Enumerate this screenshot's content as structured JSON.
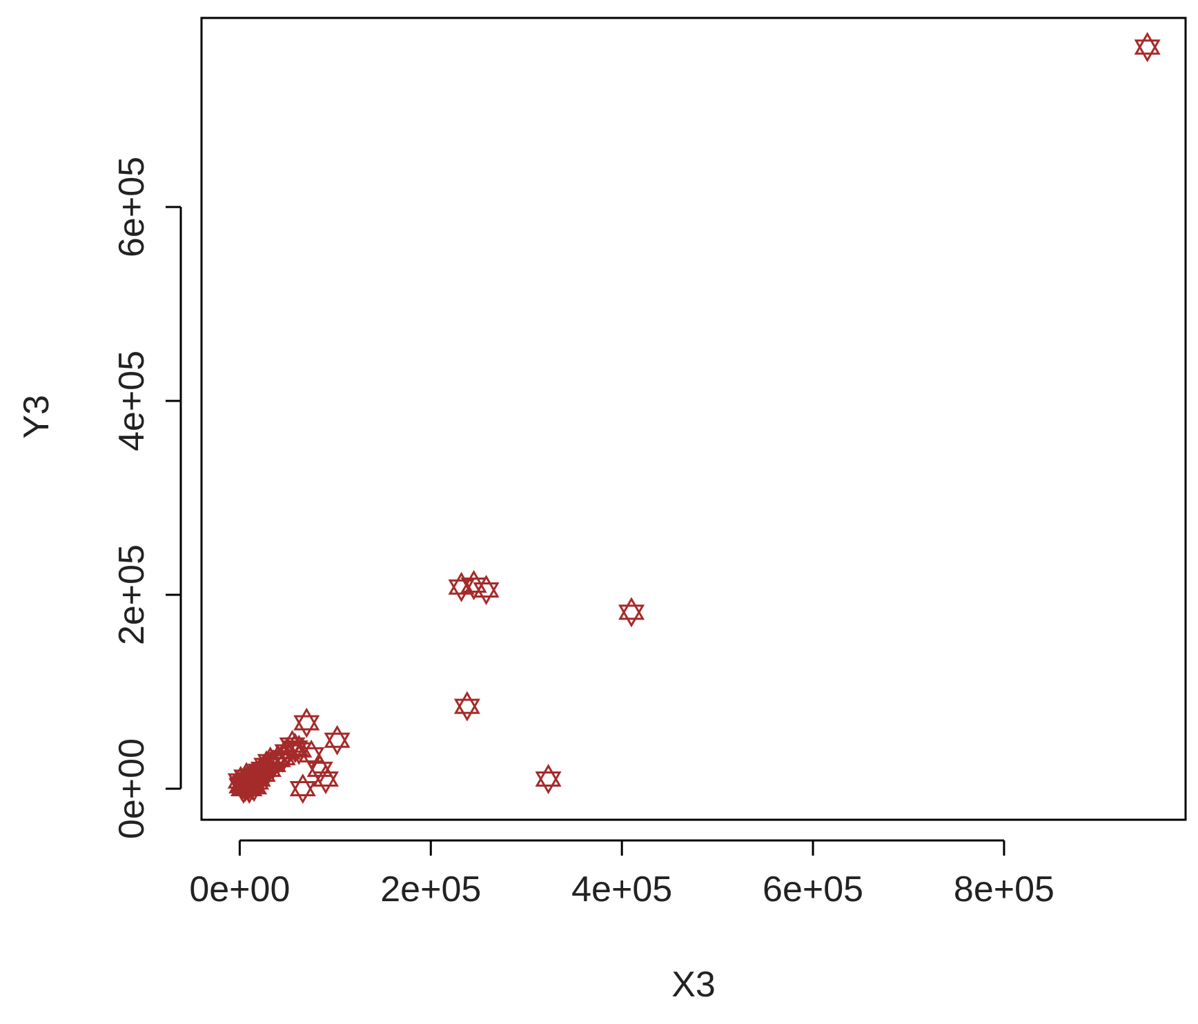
{
  "chart_data": {
    "type": "scatter",
    "xlabel": "X3",
    "ylabel": "Y3",
    "xlim": [
      -40000,
      990000
    ],
    "ylim": [
      -32000,
      795000
    ],
    "x_ticks": [
      {
        "value": 0,
        "label": "0e+00"
      },
      {
        "value": 200000,
        "label": "2e+05"
      },
      {
        "value": 400000,
        "label": "4e+05"
      },
      {
        "value": 600000,
        "label": "6e+05"
      },
      {
        "value": 800000,
        "label": "8e+05"
      }
    ],
    "y_ticks": [
      {
        "value": 0,
        "label": "0e+00"
      },
      {
        "value": 200000,
        "label": "2e+05"
      },
      {
        "value": 400000,
        "label": "4e+05"
      },
      {
        "value": 600000,
        "label": "6e+05"
      }
    ],
    "marker_color": "#a52a2a",
    "marker": "star-of-david",
    "grid": false,
    "series": [
      {
        "x": [
          950000,
          232000,
          245000,
          258000,
          410000,
          238000,
          323000,
          70000,
          102000,
          58000,
          75000,
          84000,
          90000,
          66000,
          50000,
          45000,
          40000,
          35000,
          32000,
          28000,
          25000,
          22000,
          20000,
          18000,
          16000,
          14000,
          12000,
          10000,
          8000,
          6000,
          5000,
          3000,
          2000,
          15000,
          9000,
          4000,
          11000,
          7000,
          13000,
          19000,
          24000,
          30000,
          55000,
          62000,
          1000,
          6000,
          10000,
          17000
        ],
        "y": [
          765000,
          208000,
          210000,
          205000,
          182000,
          85000,
          10000,
          68000,
          50000,
          42000,
          35000,
          20000,
          10000,
          0,
          38000,
          32000,
          30000,
          25000,
          28000,
          24000,
          20000,
          18000,
          15000,
          14000,
          12000,
          10000,
          9000,
          8000,
          7000,
          6000,
          5000,
          4000,
          3000,
          2000,
          3000,
          0,
          6000,
          12000,
          4000,
          10000,
          15000,
          20000,
          45000,
          40000,
          8000,
          2000,
          0,
          7000
        ]
      }
    ]
  }
}
